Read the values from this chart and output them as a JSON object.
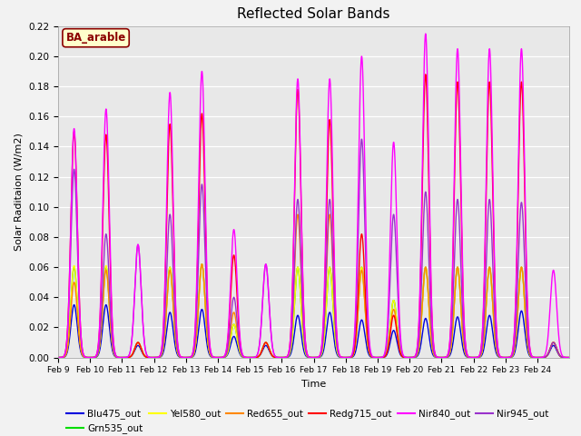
{
  "title": "Reflected Solar Bands",
  "xlabel": "Time",
  "ylabel": "Solar Raditaion (W/m2)",
  "ylim": [
    0,
    0.22
  ],
  "yticks": [
    0.0,
    0.02,
    0.04,
    0.06,
    0.08,
    0.1,
    0.12,
    0.14,
    0.16,
    0.18,
    0.2,
    0.22
  ],
  "plot_bg_color": "#e8e8e8",
  "fig_bg_color": "#f2f2f2",
  "annotation_text": "BA_arable",
  "annotation_color": "#8b0000",
  "annotation_bg": "#ffffcc",
  "series": {
    "Blu475_out": {
      "color": "#0000dd",
      "lw": 1.0
    },
    "Grn535_out": {
      "color": "#00dd00",
      "lw": 1.0
    },
    "Yel580_out": {
      "color": "#ffff00",
      "lw": 1.0
    },
    "Red655_out": {
      "color": "#ff8800",
      "lw": 1.0
    },
    "Redg715_out": {
      "color": "#ff0000",
      "lw": 1.0
    },
    "Nir840_out": {
      "color": "#ff00ff",
      "lw": 1.0
    },
    "Nir945_out": {
      "color": "#9933cc",
      "lw": 1.0
    }
  },
  "x_tick_labels": [
    "Feb 9",
    "Feb 10",
    "Feb 11",
    "Feb 12",
    "Feb 13",
    "Feb 14",
    "Feb 15",
    "Feb 16",
    "Feb 17",
    "Feb 18",
    "Feb 19",
    "Feb 20",
    "Feb 21",
    "Feb 22",
    "Feb 23",
    "Feb 24"
  ],
  "n_days": 16,
  "peaks": [
    {
      "day": 0,
      "blu": 0.035,
      "grn": 0.06,
      "yel": 0.061,
      "red": 0.05,
      "redg": 0.15,
      "nir8": 0.152,
      "nir9": 0.125
    },
    {
      "day": 1,
      "blu": 0.035,
      "grn": 0.06,
      "yel": 0.061,
      "red": 0.058,
      "redg": 0.148,
      "nir8": 0.165,
      "nir9": 0.082
    },
    {
      "day": 2,
      "blu": 0.008,
      "grn": 0.01,
      "yel": 0.01,
      "red": 0.01,
      "redg": 0.01,
      "nir8": 0.075,
      "nir9": 0.075
    },
    {
      "day": 3,
      "blu": 0.03,
      "grn": 0.06,
      "yel": 0.06,
      "red": 0.058,
      "redg": 0.155,
      "nir8": 0.176,
      "nir9": 0.095
    },
    {
      "day": 4,
      "blu": 0.032,
      "grn": 0.062,
      "yel": 0.062,
      "red": 0.062,
      "redg": 0.162,
      "nir8": 0.19,
      "nir9": 0.115
    },
    {
      "day": 5,
      "blu": 0.014,
      "grn": 0.022,
      "yel": 0.022,
      "red": 0.03,
      "redg": 0.068,
      "nir8": 0.085,
      "nir9": 0.04
    },
    {
      "day": 6,
      "blu": 0.008,
      "grn": 0.01,
      "yel": 0.01,
      "red": 0.01,
      "redg": 0.01,
      "nir8": 0.062,
      "nir9": 0.062
    },
    {
      "day": 7,
      "blu": 0.028,
      "grn": 0.06,
      "yel": 0.06,
      "red": 0.095,
      "redg": 0.178,
      "nir8": 0.185,
      "nir9": 0.105
    },
    {
      "day": 8,
      "blu": 0.03,
      "grn": 0.06,
      "yel": 0.06,
      "red": 0.095,
      "redg": 0.158,
      "nir8": 0.185,
      "nir9": 0.105
    },
    {
      "day": 9,
      "blu": 0.025,
      "grn": 0.06,
      "yel": 0.06,
      "red": 0.058,
      "redg": 0.082,
      "nir8": 0.2,
      "nir9": 0.145
    },
    {
      "day": 10,
      "blu": 0.018,
      "grn": 0.038,
      "yel": 0.038,
      "red": 0.032,
      "redg": 0.028,
      "nir8": 0.143,
      "nir9": 0.095
    },
    {
      "day": 11,
      "blu": 0.026,
      "grn": 0.06,
      "yel": 0.06,
      "red": 0.06,
      "redg": 0.188,
      "nir8": 0.215,
      "nir9": 0.11
    },
    {
      "day": 12,
      "blu": 0.027,
      "grn": 0.06,
      "yel": 0.06,
      "red": 0.06,
      "redg": 0.183,
      "nir8": 0.205,
      "nir9": 0.105
    },
    {
      "day": 13,
      "blu": 0.028,
      "grn": 0.06,
      "yel": 0.06,
      "red": 0.06,
      "redg": 0.183,
      "nir8": 0.205,
      "nir9": 0.105
    },
    {
      "day": 14,
      "blu": 0.031,
      "grn": 0.06,
      "yel": 0.06,
      "red": 0.06,
      "redg": 0.183,
      "nir8": 0.205,
      "nir9": 0.103
    },
    {
      "day": 15,
      "blu": 0.008,
      "grn": 0.01,
      "yel": 0.01,
      "red": 0.01,
      "redg": 0.01,
      "nir8": 0.058,
      "nir9": 0.01
    }
  ]
}
